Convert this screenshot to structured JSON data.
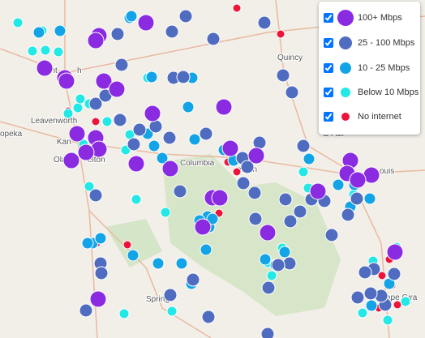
{
  "legend": {
    "items": [
      {
        "label": "100+ Mbps",
        "color": "#8a2be2"
      },
      {
        "label": "25 - 100 Mbps",
        "color": "#4f6cc0"
      },
      {
        "label": "10 - 25 Mbps",
        "color": "#12a4e6"
      },
      {
        "label": "Below 10 Mbps",
        "color": "#22e8e6"
      },
      {
        "label": "No internet",
        "color": "#ec1439"
      }
    ]
  },
  "map_labels": [
    "Saint",
    "h",
    "Leavenworth",
    "Kan",
    "opeka",
    "Ola",
    "elton",
    "Quincy",
    "O'Fall",
    "ouis",
    "Spring",
    "ape Gira",
    "Columbia",
    "erson"
  ]
}
